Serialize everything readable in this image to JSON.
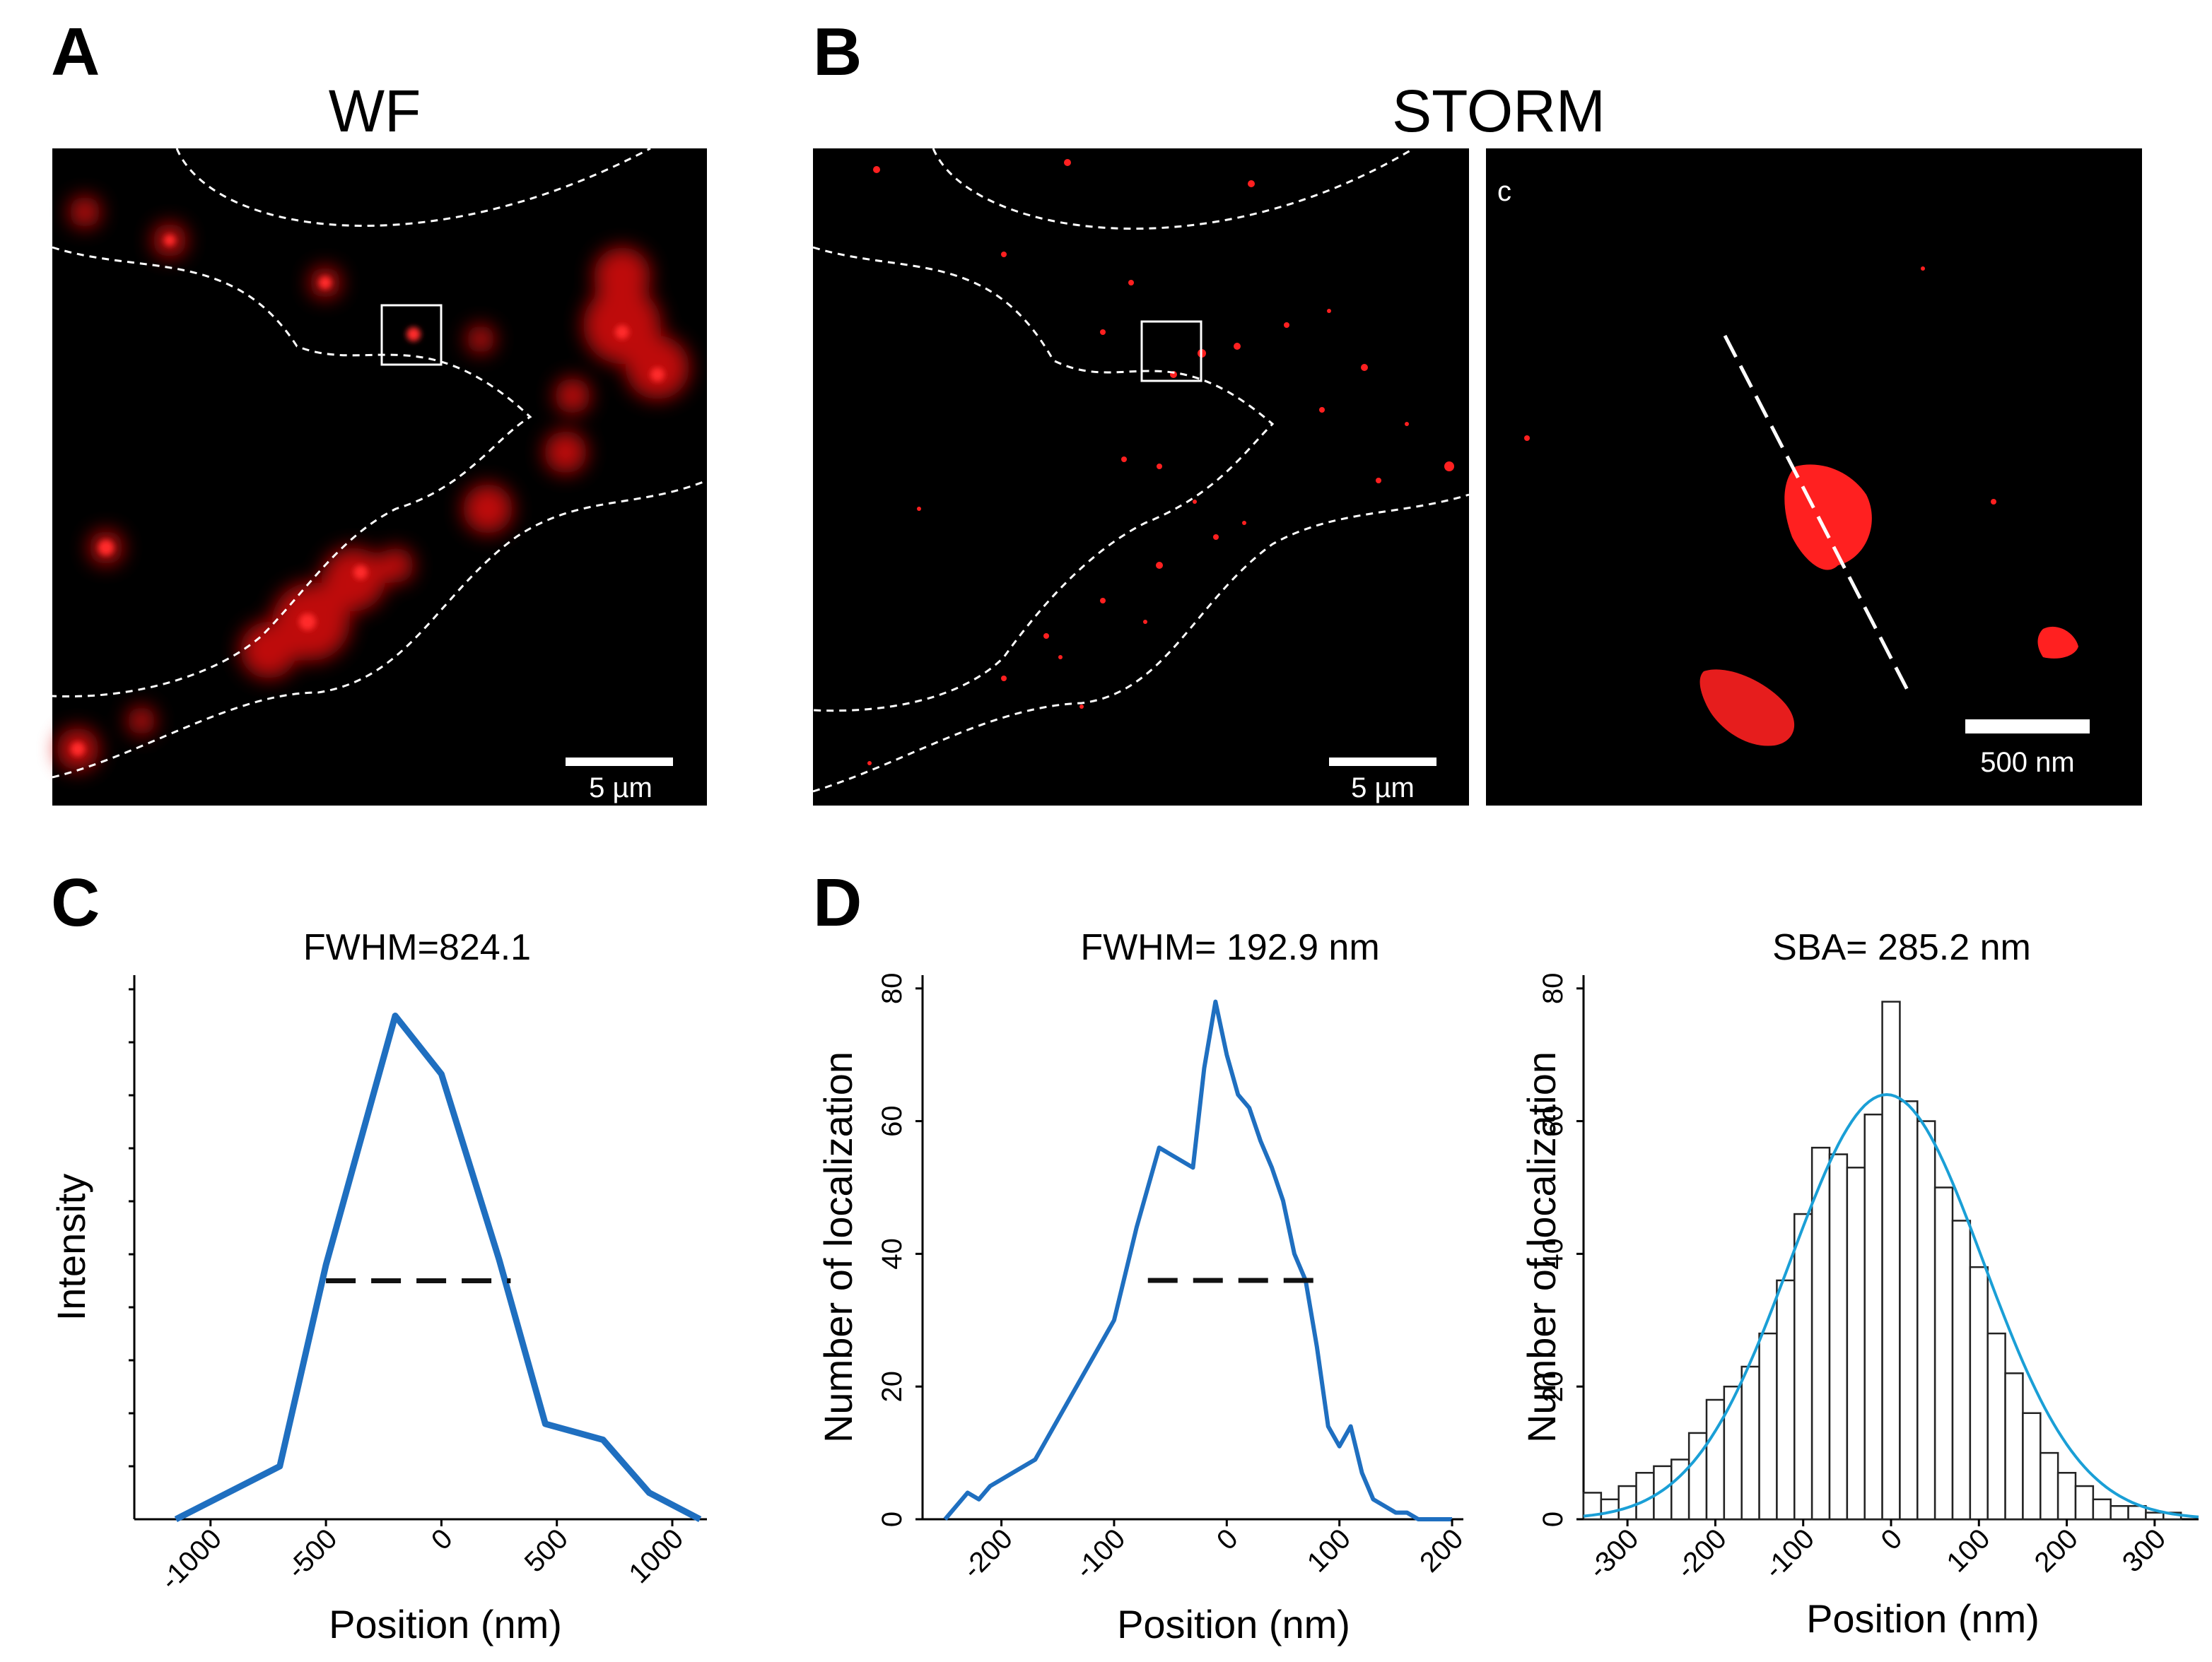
{
  "panel_labels": [
    "A",
    "B",
    "C",
    "D"
  ],
  "micrographs": {
    "wf_title": "WF",
    "storm_title": "STORM",
    "inset_label": "c",
    "scalebar_wf": "5 µm",
    "scalebar_storm": "5 µm",
    "scalebar_inset": "500 nm"
  },
  "colors": {
    "line": "#1f6fc0",
    "fit": "#1a9fd6",
    "signal": "#ff1a1a"
  },
  "chart_data": [
    {
      "id": "C",
      "type": "line",
      "title": "FWHM=824.1",
      "xlabel": "Position (nm)",
      "ylabel": "Intensity",
      "xlim": [
        -1330,
        1150
      ],
      "ylim": [
        0,
        1
      ],
      "xticks": [
        -1000,
        -500,
        0,
        500,
        1000
      ],
      "ytick_labels": false,
      "grid": false,
      "x": [
        -1150,
        -700,
        -500,
        -200,
        0,
        250,
        450,
        700,
        900,
        1120
      ],
      "y": [
        0.0,
        0.1,
        0.48,
        0.95,
        0.84,
        0.49,
        0.18,
        0.15,
        0.05,
        0.0
      ],
      "fwhm_line": {
        "x": [
          -500,
          300
        ],
        "y": 0.45
      }
    },
    {
      "id": "D1",
      "type": "line",
      "title": "FWHM= 192.9 nm",
      "xlabel": "Position (nm)",
      "ylabel": "Number of localization",
      "xlim": [
        -270,
        210
      ],
      "ylim": [
        0,
        82
      ],
      "xticks": [
        -200,
        -100,
        0,
        100,
        200
      ],
      "yticks": [
        0,
        20,
        40,
        60,
        80
      ],
      "grid": false,
      "x": [
        -250,
        -240,
        -230,
        -220,
        -210,
        -200,
        -190,
        -180,
        -170,
        -160,
        -150,
        -140,
        -130,
        -120,
        -110,
        -100,
        -90,
        -80,
        -70,
        -60,
        -50,
        -40,
        -30,
        -20,
        -10,
        0,
        10,
        20,
        30,
        40,
        50,
        60,
        70,
        80,
        90,
        100,
        110,
        120,
        130,
        140,
        150,
        160,
        170,
        180,
        190,
        200
      ],
      "y": [
        0,
        2,
        4,
        3,
        5,
        6,
        7,
        8,
        9,
        12,
        15,
        18,
        21,
        24,
        27,
        30,
        37,
        44,
        50,
        56,
        55,
        54,
        53,
        68,
        78,
        70,
        64,
        62,
        57,
        53,
        48,
        40,
        36,
        26,
        14,
        11,
        14,
        7,
        3,
        2,
        1,
        1,
        0,
        0,
        0,
        0
      ],
      "fwhm_line": {
        "x": [
          -70,
          80
        ],
        "y": 36
      }
    },
    {
      "id": "D2",
      "type": "bar",
      "title": "SBA= 285.2 nm",
      "xlabel": "Position (nm)",
      "ylabel": "Number of localization",
      "xlim": [
        -350,
        350
      ],
      "ylim": [
        0,
        82
      ],
      "xticks": [
        -300,
        -200,
        -100,
        0,
        100,
        200,
        300
      ],
      "yticks": [
        0,
        20,
        40,
        60,
        80
      ],
      "grid": false,
      "bin_width": 20,
      "bin_centers": [
        -340,
        -320,
        -300,
        -280,
        -260,
        -240,
        -220,
        -200,
        -180,
        -160,
        -140,
        -120,
        -100,
        -80,
        -60,
        -40,
        -20,
        0,
        20,
        40,
        60,
        80,
        100,
        120,
        140,
        160,
        180,
        200,
        220,
        240,
        260,
        280,
        300,
        320,
        340
      ],
      "counts": [
        4,
        3,
        5,
        7,
        8,
        9,
        13,
        18,
        20,
        23,
        28,
        36,
        46,
        56,
        55,
        53,
        61,
        78,
        63,
        60,
        50,
        45,
        38,
        28,
        22,
        16,
        10,
        7,
        5,
        3,
        2,
        2,
        1,
        1,
        0
      ],
      "fit": {
        "type": "gaussian",
        "amplitude": 64,
        "mean": -5,
        "sigma": 110
      }
    }
  ]
}
